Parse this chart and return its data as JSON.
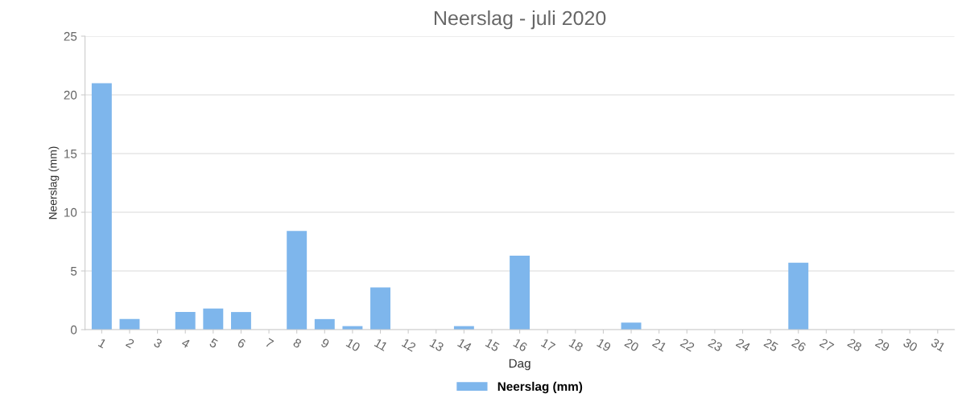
{
  "chart_data": {
    "type": "bar",
    "title": "Neerslag - juli 2020",
    "xlabel": "Dag",
    "ylabel": "Neerslag (mm)",
    "categories": [
      "1",
      "2",
      "3",
      "4",
      "5",
      "6",
      "7",
      "8",
      "9",
      "10",
      "11",
      "12",
      "13",
      "14",
      "15",
      "16",
      "17",
      "18",
      "19",
      "20",
      "21",
      "22",
      "23",
      "24",
      "25",
      "26",
      "27",
      "28",
      "29",
      "30",
      "31"
    ],
    "series": [
      {
        "name": "Neerslag (mm)",
        "color": "#7eb6ec",
        "values": [
          21.0,
          0.9,
          0,
          1.5,
          1.8,
          1.5,
          0,
          8.4,
          0.9,
          0.3,
          3.6,
          0,
          0,
          0.3,
          0,
          6.3,
          0,
          0,
          0,
          0.6,
          0,
          0,
          0,
          0,
          0,
          5.7,
          0,
          0,
          0,
          0,
          0
        ]
      }
    ],
    "ylim": [
      0,
      25
    ],
    "yticks": [
      0,
      5,
      10,
      15,
      20,
      25
    ],
    "grid": "y",
    "legend": "bottom"
  }
}
